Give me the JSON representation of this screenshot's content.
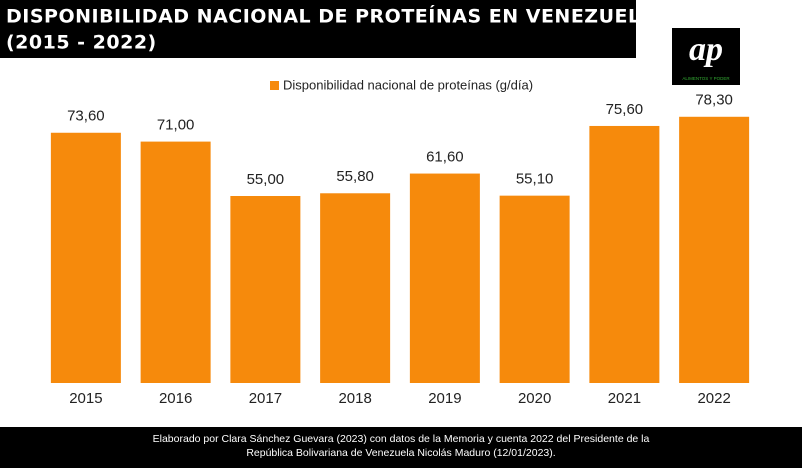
{
  "chart_data": {
    "type": "bar",
    "title": "DISPONIBILIDAD NACIONAL DE PROTEÍNAS EN VENEZUELA",
    "subtitle": "(2015 - 2022)",
    "categories": [
      "2015",
      "2016",
      "2017",
      "2018",
      "2019",
      "2020",
      "2021",
      "2022"
    ],
    "series": [
      {
        "name": "Disponibilidad nacional de proteínas (g/día)",
        "color": "#f68a0c",
        "values": [
          73.6,
          71,
          55,
          55.8,
          61.6,
          55.1,
          75.6,
          78.3
        ],
        "value_labels": [
          "73,60",
          "71,00",
          "55,00",
          "55,80",
          "61,60",
          "55,10",
          "75,60",
          "78,30"
        ]
      }
    ],
    "legend": "top",
    "logo": {
      "mark": "ap",
      "caption": "ALIMENTOS Y PODER"
    },
    "source": [
      "Elaborado por Clara Sánchez Guevara (2023) con datos de la Memoria y cuenta 2022 del Presidente de la",
      "República Bolivariana de Venezuela Nicolás Maduro (12/01/2023)."
    ]
  }
}
